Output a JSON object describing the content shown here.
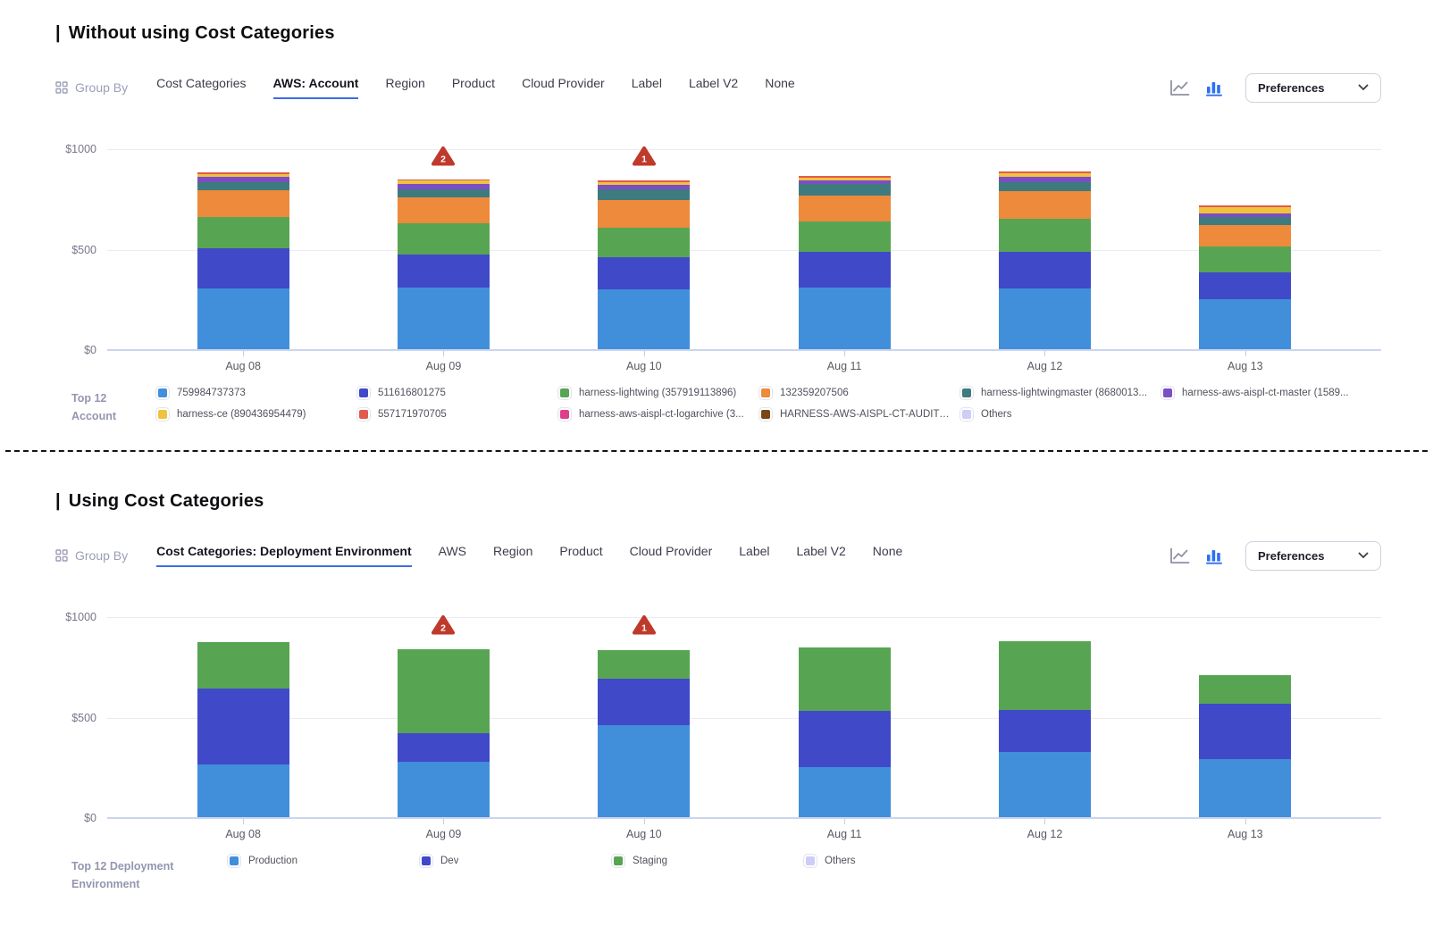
{
  "sections": [
    {
      "heading_prefix": "|",
      "heading": "Without using Cost Categories",
      "toolbar": {
        "group_by_label": "Group By",
        "tabs": [
          "Cost Categories",
          "AWS: Account",
          "Region",
          "Product",
          "Cloud Provider",
          "Label",
          "Label V2",
          "None"
        ],
        "active_tab_index": 1,
        "chart_type_active": "bar",
        "preferences_label": "Preferences"
      },
      "legend": {
        "title_lines": [
          "Top 12",
          "Account"
        ],
        "columns": 6
      }
    },
    {
      "heading_prefix": "|",
      "heading": "Using Cost Categories",
      "toolbar": {
        "group_by_label": "Group By",
        "tabs": [
          "Cost Categories: Deployment Environment",
          "AWS",
          "Region",
          "Product",
          "Cloud Provider",
          "Label",
          "Label V2",
          "None"
        ],
        "active_tab_index": 0,
        "chart_type_active": "bar",
        "preferences_label": "Preferences"
      },
      "legend": {
        "title_lines": [
          "Top 12 Deployment",
          "Environment"
        ],
        "columns": 4
      }
    }
  ],
  "chart_data": [
    {
      "type": "bar",
      "stacked": true,
      "title": "Daily cost grouped by AWS Account",
      "categories": [
        "Aug 08",
        "Aug 09",
        "Aug 10",
        "Aug 11",
        "Aug 12",
        "Aug 13"
      ],
      "y_ticks": [
        "$0",
        "$500",
        "$1000"
      ],
      "ylim": [
        0,
        1000
      ],
      "unit": "$",
      "grid": true,
      "legend_position": "bottom",
      "series": [
        {
          "name": "759984737373",
          "color": "#418FDB",
          "values": [
            302,
            306,
            301,
            306,
            302,
            250
          ]
        },
        {
          "name": "511616801275",
          "color": "#4049C8",
          "values": [
            202,
            163,
            160,
            177,
            185,
            133
          ]
        },
        {
          "name": "harness-lightwing (357919113896)",
          "color": "#57A552",
          "values": [
            156,
            156,
            146,
            151,
            164,
            129
          ]
        },
        {
          "name": "132359207506",
          "color": "#ED8A3C",
          "values": [
            133,
            129,
            138,
            129,
            138,
            108
          ]
        },
        {
          "name": "harness-lightwingmaster (8680013...",
          "color": "#3E7B7E",
          "values": [
            40,
            39,
            52,
            60,
            43,
            39
          ]
        },
        {
          "name": "harness-aws-aispl-ct-master (1589...",
          "color": "#7C4EC4",
          "values": [
            26,
            26,
            21,
            17,
            26,
            17
          ]
        },
        {
          "name": "harness-ce (890436954479)",
          "color": "#F0C23E",
          "values": [
            14,
            16,
            14,
            14,
            18,
            31
          ]
        },
        {
          "name": "557171970705",
          "color": "#E15B4F",
          "values": [
            8,
            5,
            8,
            8,
            8,
            8
          ]
        },
        {
          "name": "harness-aws-aispl-ct-logarchive (3...",
          "color": "#E03E8C",
          "values": [
            0,
            0,
            0,
            0,
            0,
            0
          ]
        },
        {
          "name": "HARNESS-AWS-AISPL-CT-AUDIT (...",
          "color": "#7A4716",
          "values": [
            0,
            0,
            0,
            0,
            0,
            0
          ]
        },
        {
          "name": "Others",
          "color": "#CDCDF7",
          "values": [
            0,
            0,
            0,
            0,
            0,
            0
          ]
        }
      ],
      "anomalies": [
        {
          "category": "Aug 09",
          "count": 2
        },
        {
          "category": "Aug 10",
          "count": 1
        }
      ]
    },
    {
      "type": "bar",
      "stacked": true,
      "title": "Daily cost grouped by Cost Category: Deployment Environment",
      "categories": [
        "Aug 08",
        "Aug 09",
        "Aug 10",
        "Aug 11",
        "Aug 12",
        "Aug 13"
      ],
      "y_ticks": [
        "$0",
        "$500",
        "$1000"
      ],
      "ylim": [
        0,
        1000
      ],
      "unit": "$",
      "grid": true,
      "legend_position": "bottom",
      "series": [
        {
          "name": "Production",
          "color": "#418FDB",
          "values": [
            263,
            276,
            460,
            250,
            328,
            289
          ]
        },
        {
          "name": "Dev",
          "color": "#4049C8",
          "values": [
            379,
            142,
            233,
            280,
            211,
            276
          ]
        },
        {
          "name": "Staging",
          "color": "#57A552",
          "values": [
            233,
            418,
            142,
            319,
            345,
            142
          ]
        },
        {
          "name": "Others",
          "color": "#CDCDF7",
          "values": [
            0,
            0,
            0,
            0,
            0,
            0
          ]
        }
      ],
      "anomalies": [
        {
          "category": "Aug 09",
          "count": 2
        },
        {
          "category": "Aug 10",
          "count": 1
        }
      ]
    }
  ],
  "colors": {
    "active_tab_underline": "#3c6ce8",
    "anomaly_badge": "#bf3a2b",
    "bar_icon_active": "#2d6ff0",
    "line_icon_inactive": "#8f90a6"
  }
}
